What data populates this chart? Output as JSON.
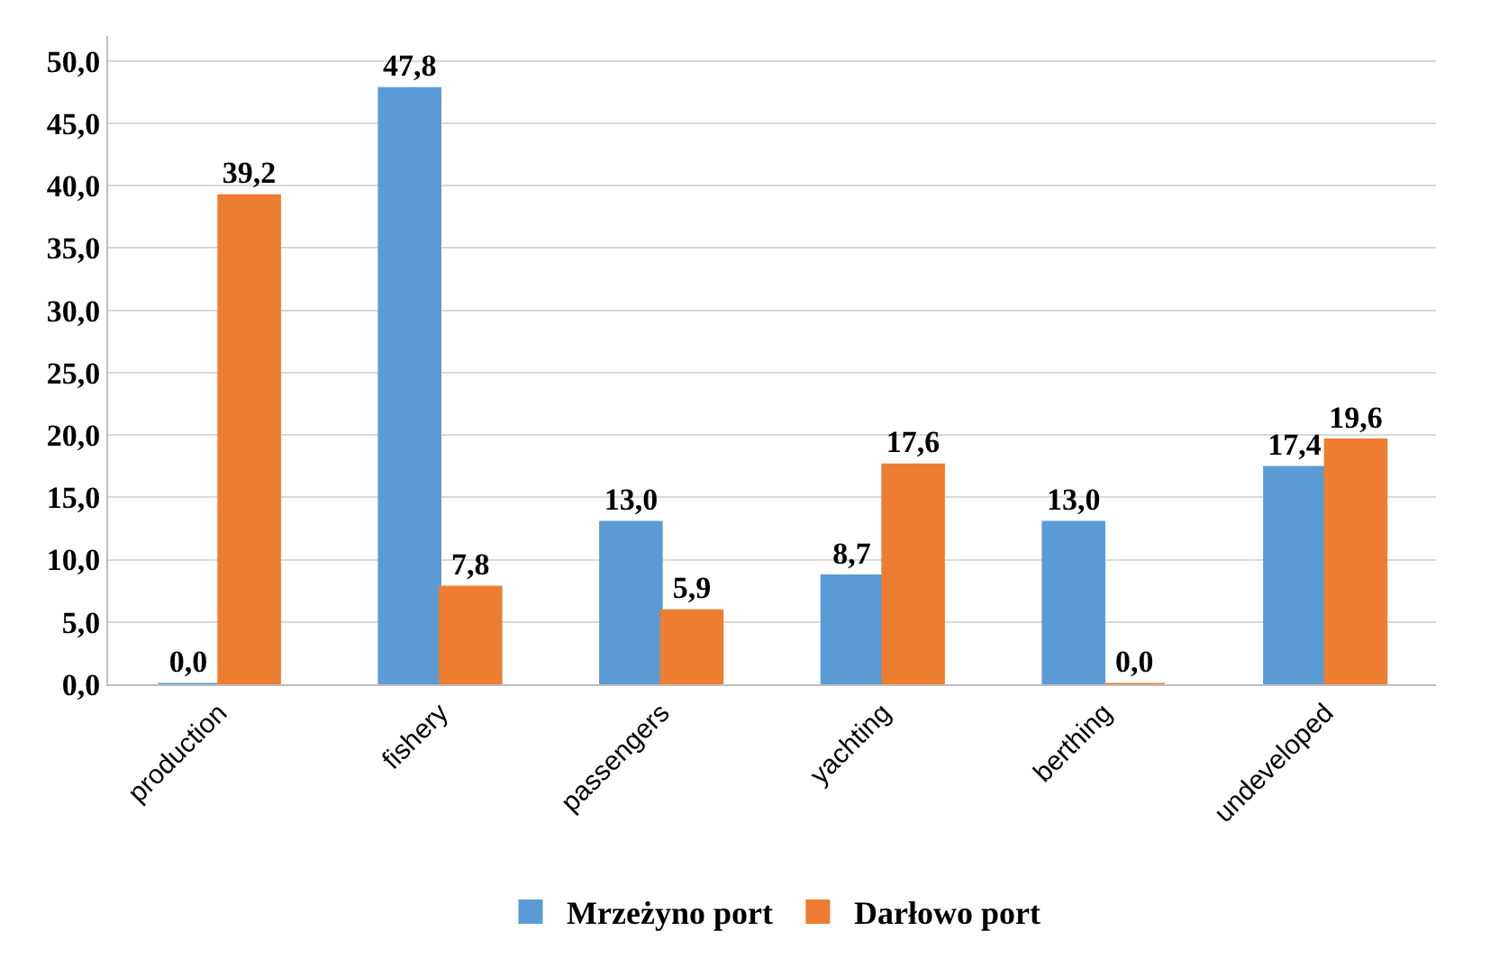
{
  "chart_data": {
    "type": "bar",
    "categories": [
      "production",
      "fishery",
      "passengers",
      "yachting",
      "berthing",
      "undeveloped"
    ],
    "series": [
      {
        "name": "Mrzeżyno port",
        "color": "#5b9bd5",
        "values": [
          0.0,
          47.8,
          13.0,
          8.7,
          13.0,
          17.4
        ],
        "value_labels": [
          "0,0",
          "47,8",
          "13,0",
          "8,7",
          "13,0",
          "17,4"
        ]
      },
      {
        "name": "Darłowo port",
        "color": "#ed7d31",
        "values": [
          39.2,
          7.8,
          5.9,
          17.6,
          0.0,
          19.6
        ],
        "value_labels": [
          "39,2",
          "7,8",
          "5,9",
          "17,6",
          "0,0",
          "19,6"
        ]
      }
    ],
    "ylim": [
      0,
      52
    ],
    "yticks": [
      {
        "value": 0,
        "label": "0,0"
      },
      {
        "value": 5,
        "label": "5,0"
      },
      {
        "value": 10,
        "label": "10,0"
      },
      {
        "value": 15,
        "label": "15,0"
      },
      {
        "value": 20,
        "label": "20,0"
      },
      {
        "value": 25,
        "label": "25,0"
      },
      {
        "value": 30,
        "label": "30,0"
      },
      {
        "value": 35,
        "label": "35,0"
      },
      {
        "value": 40,
        "label": "40,0"
      },
      {
        "value": 45,
        "label": "45,0"
      },
      {
        "value": 50,
        "label": "50,0"
      }
    ],
    "grid": true,
    "legend": "bottom"
  }
}
